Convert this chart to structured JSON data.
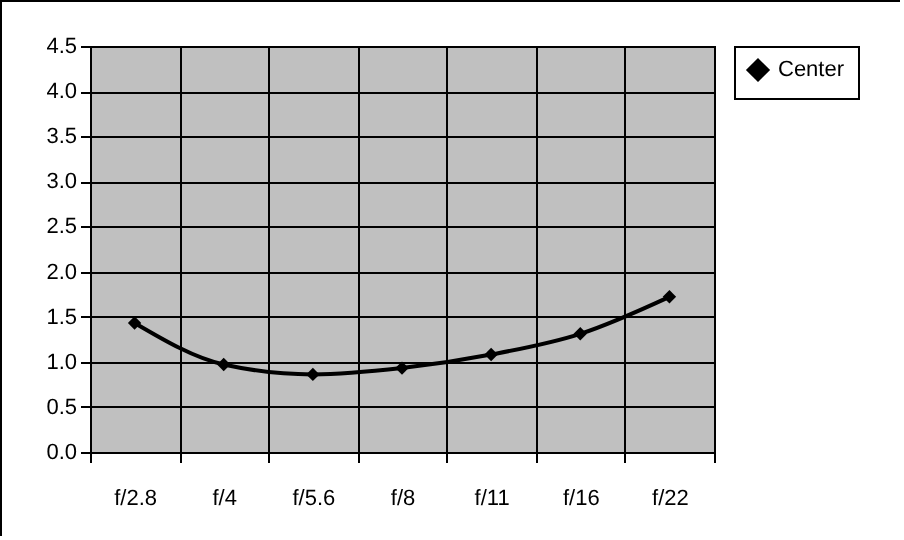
{
  "chart_data": {
    "type": "line",
    "categories": [
      "f/2.8",
      "f/4",
      "f/5.6",
      "f/8",
      "f/11",
      "f/16",
      "f/22"
    ],
    "series": [
      {
        "name": "Center",
        "color": "#000000",
        "values": [
          1.43,
          0.97,
          0.86,
          0.93,
          1.08,
          1.31,
          1.72
        ]
      }
    ],
    "ylim": [
      0,
      4.5
    ],
    "yticks": [
      {
        "value": 0,
        "label": "0.0"
      },
      0.5,
      {
        "value": 1,
        "label": "1.0"
      },
      1.5,
      {
        "value": 2,
        "label": "2.0"
      },
      2.5,
      {
        "value": 3,
        "label": "3.0"
      },
      3.5,
      {
        "value": 4,
        "label": "4.0"
      },
      4.5
    ],
    "grid": true,
    "legend": "right",
    "marker": "diamond",
    "line_style": "solid"
  }
}
